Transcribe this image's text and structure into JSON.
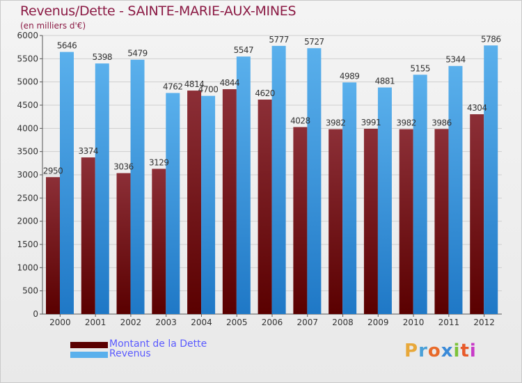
{
  "title": "Revenus/Dette - SAINTE-MARIE-AUX-MINES",
  "subtitle": "(en milliers d'€)",
  "colors": {
    "debt_top": "#8c2f37",
    "debt_bottom": "#5a0000",
    "revenue_top": "#5ab0ec",
    "revenue_bottom": "#1f78c6",
    "title": "#8b1a44",
    "legend_text": "#5a5aff"
  },
  "chart_data": {
    "type": "bar",
    "title": "Revenus/Dette - SAINTE-MARIE-AUX-MINES",
    "ylabel": "(en milliers d'€)",
    "xlabel": "",
    "ylim": [
      0,
      6000
    ],
    "yticks": [
      0,
      500,
      1000,
      1500,
      2000,
      2500,
      3000,
      3500,
      4000,
      4500,
      5000,
      5500,
      6000
    ],
    "grid": true,
    "categories": [
      "2000",
      "2001",
      "2002",
      "2003",
      "2004",
      "2005",
      "2006",
      "2007",
      "2008",
      "2009",
      "2010",
      "2011",
      "2012"
    ],
    "series": [
      {
        "name": "Montant de la Dette",
        "values": [
          2950,
          3374,
          3036,
          3129,
          4814,
          4844,
          4620,
          4028,
          3982,
          3991,
          3982,
          3986,
          4304
        ],
        "labels": [
          "2950",
          "3374",
          "3036",
          "3129",
          "4814",
          "4844",
          "4620",
          "4028",
          "3982",
          "3991",
          "3982",
          "3986",
          "4304"
        ]
      },
      {
        "name": "Revenus",
        "values": [
          5646,
          5398,
          5479,
          4762,
          4700,
          5547,
          5777,
          5727,
          4989,
          4881,
          5155,
          5344,
          5786
        ],
        "labels": [
          "5646",
          "5398",
          "5479",
          "4762",
          "4700",
          "5547",
          "5777",
          "5727",
          "4989",
          "4881",
          "5155",
          "5344",
          "5786"
        ]
      }
    ],
    "legend": [
      "Montant de la Dette",
      "Revenus"
    ]
  },
  "logo": {
    "letters": [
      "P",
      "r",
      "o",
      "x",
      "i",
      "t",
      "i"
    ],
    "colors": [
      "#e8a83a",
      "#4aa0d8",
      "#e86a2a",
      "#3a8ad8",
      "#7cc23a",
      "#e85a2a",
      "#c83ac8"
    ]
  }
}
